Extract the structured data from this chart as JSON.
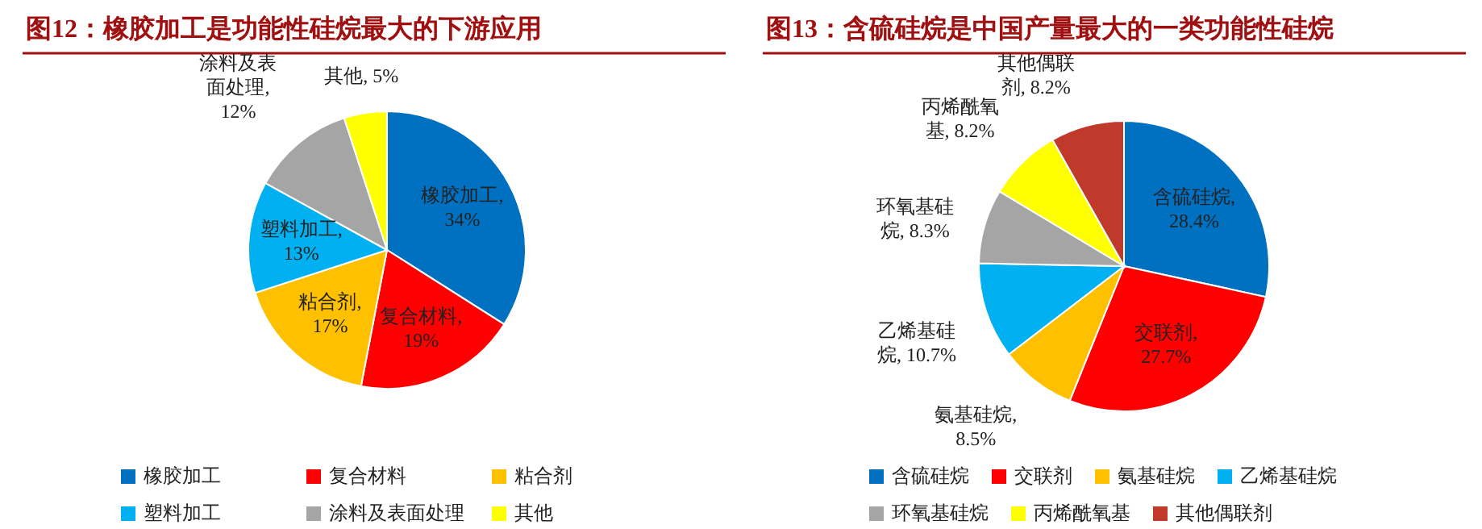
{
  "chart_data": [
    {
      "type": "pie",
      "title": "图12：橡胶加工是功能性硅烷最大的下游应用",
      "categories": [
        "橡胶加工",
        "复合材料",
        "粘合剂",
        "塑料加工",
        "涂料及表面处理",
        "其他"
      ],
      "values": [
        34,
        19,
        17,
        13,
        12,
        5
      ],
      "value_labels": [
        "橡胶加工, 34%",
        "复合材料, 19%",
        "粘合剂, 17%",
        "塑料加工, 13%",
        "涂料及表面处理, 12%",
        "其他, 5%"
      ],
      "colors": [
        "#0070c0",
        "#ff0000",
        "#ffc000",
        "#00b0f0",
        "#a5a5a5",
        "#ffff00"
      ],
      "legend": "bottom"
    },
    {
      "type": "pie",
      "title": "图13：含硫硅烷是中国产量最大的一类功能性硅烷",
      "categories": [
        "含硫硅烷",
        "交联剂",
        "氨基硅烷",
        "乙烯基硅烷",
        "环氧基硅烷",
        "丙烯酰氧基",
        "其他偶联剂"
      ],
      "values": [
        28.4,
        27.7,
        8.5,
        10.7,
        8.3,
        8.2,
        8.2
      ],
      "value_labels": [
        "含硫硅烷, 28.4%",
        "交联剂, 27.7%",
        "氨基硅烷, 8.5%",
        "乙烯基硅烷, 10.7%",
        "环氧基硅烷, 8.3%",
        "丙烯酰氧基, 8.2%",
        "其他偶联剂, 8.2%"
      ],
      "colors": [
        "#0070c0",
        "#ff0000",
        "#ffc000",
        "#00b0f0",
        "#a5a5a5",
        "#ffff00",
        "#c0392b"
      ],
      "legend": "bottom"
    }
  ]
}
